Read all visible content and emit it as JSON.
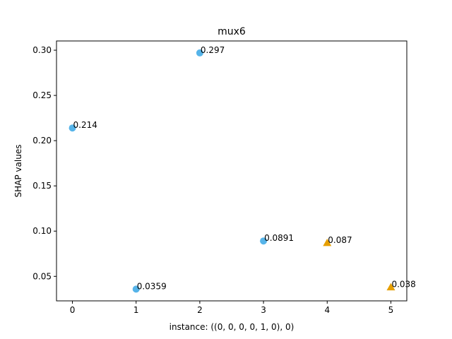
{
  "chart_data": {
    "type": "scatter",
    "title": "mux6",
    "xlabel": "instance: ((0, 0, 0, 0, 1, 0), 0)",
    "ylabel": "SHAP values",
    "xlim": [
      -0.25,
      5.25
    ],
    "ylim": [
      0.0229,
      0.3102
    ],
    "xticks": [
      0,
      1,
      2,
      3,
      4,
      5
    ],
    "yticks": [
      0.05,
      0.1,
      0.15,
      0.2,
      0.25,
      0.3
    ],
    "ytick_labels": [
      "0.05",
      "0.10",
      "0.15",
      "0.20",
      "0.25",
      "0.30"
    ],
    "grid": false,
    "series": [
      {
        "marker": "circle",
        "color": "#56b4e9",
        "points": [
          {
            "x": 0,
            "y": 0.214,
            "label": "0.214"
          },
          {
            "x": 1,
            "y": 0.0359,
            "label": "0.0359"
          },
          {
            "x": 2,
            "y": 0.297,
            "label": "0.297"
          },
          {
            "x": 3,
            "y": 0.0891,
            "label": "0.0891"
          }
        ]
      },
      {
        "marker": "triangle",
        "color": "#e69f00",
        "points": [
          {
            "x": 4,
            "y": 0.087,
            "label": "0.087"
          },
          {
            "x": 5,
            "y": 0.038,
            "label": "0.038"
          }
        ]
      }
    ]
  }
}
